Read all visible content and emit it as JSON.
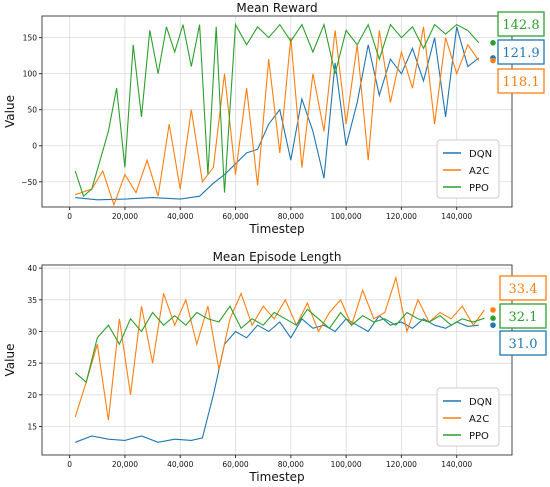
{
  "chart_data": [
    {
      "type": "line",
      "title": "Mean Reward",
      "xlabel": "Timestep",
      "ylabel": "Value",
      "xlim": [
        -10000,
        160000
      ],
      "ylim": [
        -85,
        180
      ],
      "xticks": [
        0,
        20000,
        40000,
        60000,
        80000,
        100000,
        120000,
        140000
      ],
      "xtick_labels": [
        "0",
        "20,000",
        "40,000",
        "60,000",
        "80,000",
        "100,000",
        "120,000",
        "140,000"
      ],
      "yticks": [
        -50,
        0,
        50,
        100,
        150
      ],
      "ytick_labels": [
        "−50",
        "0",
        "50",
        "100",
        "150"
      ],
      "grid": true,
      "legend_position": "lower-right",
      "series": [
        {
          "name": "DQN",
          "color": "#1f77b4",
          "x": [
            2000,
            10000,
            20000,
            30000,
            40000,
            47000,
            52000,
            56000,
            60000,
            64000,
            68000,
            72000,
            76000,
            80000,
            84000,
            88000,
            92000,
            96000,
            100000,
            104000,
            108000,
            112000,
            116000,
            120000,
            124000,
            128000,
            132000,
            136000,
            140000,
            144000,
            148000
          ],
          "y": [
            -72,
            -75,
            -74,
            -72,
            -74,
            -70,
            -52,
            -40,
            -25,
            -10,
            -5,
            30,
            50,
            -20,
            65,
            20,
            -45,
            115,
            0,
            60,
            140,
            70,
            120,
            100,
            135,
            90,
            150,
            40,
            165,
            110,
            121.9
          ],
          "end_value": "121.9"
        },
        {
          "name": "A2C",
          "color": "#ff7f0e",
          "x": [
            2000,
            8000,
            12000,
            16000,
            20000,
            24000,
            28000,
            32000,
            36000,
            40000,
            44000,
            48000,
            52000,
            56000,
            60000,
            64000,
            68000,
            72000,
            76000,
            80000,
            84000,
            88000,
            92000,
            96000,
            100000,
            104000,
            108000,
            112000,
            116000,
            120000,
            124000,
            128000,
            132000,
            136000,
            140000,
            144000,
            148000
          ],
          "y": [
            -68,
            -60,
            -35,
            -82,
            -40,
            -65,
            -20,
            -70,
            30,
            -60,
            50,
            -50,
            -30,
            100,
            -40,
            80,
            -55,
            120,
            -10,
            150,
            -30,
            100,
            20,
            160,
            30,
            140,
            -20,
            160,
            60,
            130,
            80,
            165,
            30,
            150,
            100,
            140,
            118.1
          ],
          "end_value": "118.1"
        },
        {
          "name": "PPO",
          "color": "#2ca02c",
          "x": [
            2000,
            5000,
            8000,
            11000,
            14000,
            17000,
            20000,
            23000,
            26000,
            29000,
            32000,
            35000,
            38000,
            41000,
            44000,
            47000,
            50000,
            53000,
            56000,
            60000,
            64000,
            68000,
            72000,
            76000,
            80000,
            84000,
            88000,
            92000,
            96000,
            100000,
            104000,
            108000,
            112000,
            116000,
            120000,
            124000,
            128000,
            132000,
            136000,
            140000,
            144000,
            148000
          ],
          "y": [
            -35,
            -70,
            -60,
            -20,
            20,
            80,
            -30,
            140,
            40,
            160,
            100,
            165,
            130,
            168,
            110,
            168,
            -40,
            165,
            -65,
            168,
            140,
            165,
            150,
            168,
            145,
            168,
            130,
            168,
            100,
            160,
            140,
            168,
            120,
            168,
            150,
            165,
            135,
            168,
            155,
            168,
            160,
            142.8
          ],
          "end_value": "142.8"
        }
      ]
    },
    {
      "type": "line",
      "title": "Mean Episode Length",
      "xlabel": "Timestep",
      "ylabel": "Value",
      "xlim": [
        -10000,
        160000
      ],
      "ylim": [
        10.5,
        40.5
      ],
      "xticks": [
        0,
        20000,
        40000,
        60000,
        80000,
        100000,
        120000,
        140000
      ],
      "xtick_labels": [
        "0",
        "20,000",
        "40,000",
        "60,000",
        "80,000",
        "100,000",
        "120,000",
        "140,000"
      ],
      "yticks": [
        15,
        20,
        25,
        30,
        35,
        40
      ],
      "ytick_labels": [
        "15",
        "20",
        "25",
        "30",
        "35",
        "40"
      ],
      "grid": true,
      "legend_position": "lower-right",
      "series": [
        {
          "name": "DQN",
          "color": "#1f77b4",
          "x": [
            2000,
            8000,
            14000,
            20000,
            26000,
            32000,
            38000,
            44000,
            48000,
            52000,
            56000,
            60000,
            64000,
            68000,
            72000,
            76000,
            80000,
            84000,
            88000,
            92000,
            96000,
            100000,
            104000,
            108000,
            112000,
            116000,
            120000,
            124000,
            128000,
            132000,
            136000,
            140000,
            144000,
            148000
          ],
          "y": [
            12.5,
            13.5,
            13,
            12.8,
            13.5,
            12.5,
            13,
            12.8,
            13.2,
            20,
            28,
            30,
            29,
            31,
            30,
            31.5,
            29,
            32,
            30.5,
            31,
            30,
            32,
            31,
            30,
            32.5,
            31,
            31.5,
            30.5,
            32,
            31,
            30.5,
            31.5,
            30.8,
            31.0
          ],
          "end_value": "31.0"
        },
        {
          "name": "A2C",
          "color": "#ff7f0e",
          "x": [
            2000,
            6000,
            10000,
            14000,
            18000,
            22000,
            26000,
            30000,
            34000,
            38000,
            42000,
            46000,
            50000,
            54000,
            58000,
            62000,
            66000,
            70000,
            74000,
            78000,
            82000,
            86000,
            90000,
            94000,
            98000,
            102000,
            106000,
            110000,
            114000,
            118000,
            122000,
            126000,
            130000,
            134000,
            138000,
            142000,
            146000,
            150000
          ],
          "y": [
            16.5,
            22,
            28,
            16,
            32,
            20,
            34,
            25,
            36,
            31,
            35,
            28,
            34,
            24,
            32,
            36,
            31,
            34,
            32,
            35,
            31,
            34.5,
            30,
            33,
            35,
            31,
            36.5,
            32,
            33,
            38.5,
            30,
            35,
            31.5,
            33,
            32,
            34,
            31,
            33.4
          ],
          "end_value": "33.4"
        },
        {
          "name": "PPO",
          "color": "#2ca02c",
          "x": [
            2000,
            6000,
            10000,
            14000,
            18000,
            22000,
            26000,
            30000,
            34000,
            38000,
            42000,
            46000,
            50000,
            54000,
            58000,
            62000,
            66000,
            70000,
            74000,
            78000,
            82000,
            86000,
            90000,
            94000,
            98000,
            102000,
            106000,
            110000,
            114000,
            118000,
            122000,
            126000,
            130000,
            134000,
            138000,
            142000,
            146000,
            150000
          ],
          "y": [
            23.5,
            22,
            29,
            31,
            28,
            32,
            30,
            33,
            31,
            32.5,
            31,
            33,
            32,
            31.5,
            34,
            30.5,
            32,
            31,
            33,
            32,
            31,
            33.5,
            32,
            30.5,
            33,
            31,
            32.5,
            31.5,
            32,
            31,
            33,
            32,
            31.5,
            32.5,
            31,
            32,
            31.5,
            32.1
          ],
          "end_value": "32.1"
        }
      ]
    }
  ]
}
